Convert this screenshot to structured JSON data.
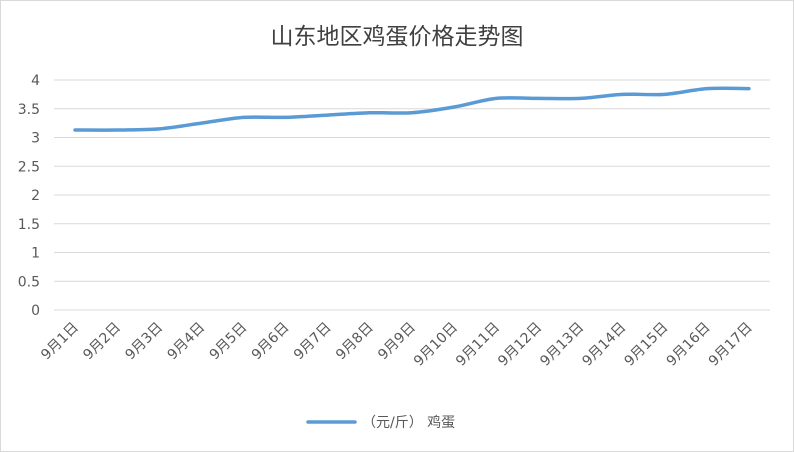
{
  "chart_data": {
    "type": "line",
    "title": "山东地区鸡蛋价格走势图",
    "xlabel": "",
    "ylabel": "",
    "categories": [
      "9月1日",
      "9月2日",
      "9月3日",
      "9月4日",
      "9月5日",
      "9月6日",
      "9月7日",
      "9月8日",
      "9月9日",
      "9月10日",
      "9月11日",
      "9月12日",
      "9月13日",
      "9月14日",
      "9月15日",
      "9月16日",
      "9月17日"
    ],
    "series": [
      {
        "name": "（元/斤） 鸡蛋",
        "values": [
          3.13,
          3.13,
          3.15,
          3.25,
          3.35,
          3.35,
          3.39,
          3.43,
          3.43,
          3.53,
          3.68,
          3.68,
          3.68,
          3.75,
          3.75,
          3.85,
          3.85
        ]
      }
    ],
    "yticks": [
      "0",
      "0.5",
      "1",
      "1.5",
      "2",
      "2.5",
      "3",
      "3.5",
      "4"
    ],
    "ylim": [
      0,
      4
    ],
    "grid": true,
    "legend_position": "bottom",
    "line_color": "#5b9bd5",
    "grid_color": "#d9d9d9"
  }
}
